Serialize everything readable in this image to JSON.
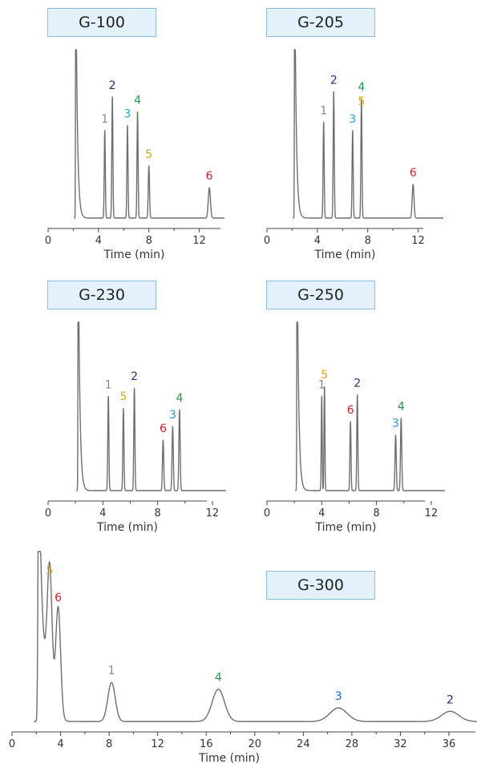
{
  "chart_data": [
    {
      "type": "line",
      "title": "G-100",
      "xlabel": "Time (min)",
      "xlim": [
        0,
        14
      ],
      "xticks": [
        0,
        4,
        8,
        12
      ],
      "ylim": [
        0,
        1
      ],
      "grid": false,
      "solvent_front": 2.2,
      "peaks": [
        {
          "label": "1",
          "rt": 4.5,
          "height": 0.52,
          "width": 0.06,
          "color": "#888888"
        },
        {
          "label": "2",
          "rt": 5.1,
          "height": 0.72,
          "width": 0.06,
          "color": "#1f2f8c"
        },
        {
          "label": "3",
          "rt": 6.3,
          "height": 0.55,
          "width": 0.06,
          "color": "#1da1d6"
        },
        {
          "label": "4",
          "rt": 7.1,
          "height": 0.63,
          "width": 0.06,
          "color": "#1e9b48"
        },
        {
          "label": "5",
          "rt": 8.0,
          "height": 0.31,
          "width": 0.07,
          "color": "#e8a21a"
        },
        {
          "label": "6",
          "rt": 12.8,
          "height": 0.18,
          "width": 0.12,
          "color": "#d62027"
        }
      ]
    },
    {
      "type": "line",
      "title": "G-205",
      "xlabel": "Time (min)",
      "xlim": [
        0,
        14
      ],
      "xticks": [
        0,
        4,
        8,
        12
      ],
      "ylim": [
        0,
        1
      ],
      "grid": false,
      "solvent_front": 2.2,
      "peaks": [
        {
          "label": "1",
          "rt": 4.5,
          "height": 0.57,
          "width": 0.06,
          "color": "#888888"
        },
        {
          "label": "2",
          "rt": 5.3,
          "height": 0.75,
          "width": 0.06,
          "color": "#1f2f8c"
        },
        {
          "label": "3",
          "rt": 6.8,
          "height": 0.52,
          "width": 0.06,
          "color": "#1da1d6"
        },
        {
          "label": "4",
          "rt": 7.5,
          "height": 0.71,
          "width": 0.06,
          "color": "#1e9b48"
        },
        {
          "label": "5",
          "rt": 7.5,
          "height": 0.0,
          "width": 0.06,
          "color": "#e8a21a"
        },
        {
          "label": "6",
          "rt": 11.6,
          "height": 0.2,
          "width": 0.1,
          "color": "#d62027"
        }
      ]
    },
    {
      "type": "line",
      "title": "G-230",
      "xlabel": "Time (min)",
      "xlim": [
        0,
        13
      ],
      "xticks": [
        0,
        4,
        8,
        12
      ],
      "ylim": [
        0,
        1
      ],
      "grid": false,
      "solvent_front": 2.2,
      "peaks": [
        {
          "label": "1",
          "rt": 4.4,
          "height": 0.56,
          "width": 0.06,
          "color": "#888888"
        },
        {
          "label": "5",
          "rt": 5.5,
          "height": 0.49,
          "width": 0.06,
          "color": "#e8a21a"
        },
        {
          "label": "2",
          "rt": 6.3,
          "height": 0.61,
          "width": 0.06,
          "color": "#1f2f8c"
        },
        {
          "label": "6",
          "rt": 8.4,
          "height": 0.3,
          "width": 0.07,
          "color": "#d62027"
        },
        {
          "label": "3",
          "rt": 9.1,
          "height": 0.38,
          "width": 0.07,
          "color": "#1da1d6"
        },
        {
          "label": "4",
          "rt": 9.6,
          "height": 0.48,
          "width": 0.07,
          "color": "#1e9b48"
        }
      ]
    },
    {
      "type": "line",
      "title": "G-250",
      "xlabel": "Time (min)",
      "xlim": [
        0,
        13
      ],
      "xticks": [
        0,
        4,
        8,
        12
      ],
      "ylim": [
        0,
        1
      ],
      "grid": false,
      "solvent_front": 2.2,
      "peaks": [
        {
          "label": "1",
          "rt": 4.0,
          "height": 0.56,
          "width": 0.05,
          "color": "#888888"
        },
        {
          "label": "5",
          "rt": 4.2,
          "height": 0.62,
          "width": 0.05,
          "color": "#e8a21a"
        },
        {
          "label": "6",
          "rt": 6.1,
          "height": 0.41,
          "width": 0.06,
          "color": "#d62027"
        },
        {
          "label": "2",
          "rt": 6.6,
          "height": 0.57,
          "width": 0.06,
          "color": "#1f2f8c"
        },
        {
          "label": "3",
          "rt": 9.4,
          "height": 0.33,
          "width": 0.07,
          "color": "#1da1d6"
        },
        {
          "label": "4",
          "rt": 9.8,
          "height": 0.43,
          "width": 0.07,
          "color": "#1e9b48"
        }
      ]
    },
    {
      "type": "line",
      "title": "G-300",
      "xlabel": "Time (min)",
      "xlim": [
        0,
        40
      ],
      "xticks": [
        0,
        4,
        8,
        12,
        16,
        20,
        24,
        28,
        32,
        36
      ],
      "ylim": [
        0,
        1
      ],
      "grid": false,
      "solvent_front": 2.2,
      "peaks": [
        {
          "label": "5",
          "rt": 3.1,
          "height": 0.82,
          "width": 0.1,
          "color": "#e8a21a"
        },
        {
          "label": "6",
          "rt": 3.8,
          "height": 0.66,
          "width": 0.1,
          "color": "#d62027"
        },
        {
          "label": "1",
          "rt": 8.2,
          "height": 0.23,
          "width": 0.15,
          "color": "#888888"
        },
        {
          "label": "4",
          "rt": 17.0,
          "height": 0.19,
          "width": 0.25,
          "color": "#1e9b48"
        },
        {
          "label": "3",
          "rt": 26.9,
          "height": 0.08,
          "width": 0.35,
          "color": "#1565c0"
        },
        {
          "label": "2",
          "rt": 36.1,
          "height": 0.06,
          "width": 0.35,
          "color": "#1f2f8c"
        }
      ]
    }
  ]
}
